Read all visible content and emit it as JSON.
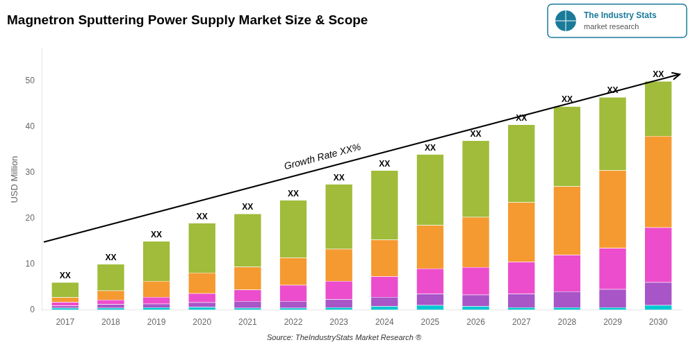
{
  "chart_data": {
    "type": "bar",
    "title": "Magnetron Sputtering Power Supply Market Size & Scope",
    "subtitle": "Source: TheIndustryStats Market Research ®",
    "ylabel": "USD Million",
    "categories": [
      "2017",
      "2018",
      "2019",
      "2020",
      "2021",
      "2022",
      "2023",
      "2024",
      "2025",
      "2026",
      "2027",
      "2028",
      "2029",
      "2030"
    ],
    "series": [
      {
        "color": "#00c8d2",
        "values": [
          0.4,
          0.4,
          0.5,
          0.6,
          0.4,
          0.4,
          0.5,
          0.8,
          1.0,
          0.8,
          0.5,
          0.5,
          0.5,
          1.0
        ]
      },
      {
        "color": "#a855c8",
        "values": [
          0.5,
          0.8,
          0.8,
          1.0,
          1.5,
          1.5,
          1.8,
          2.0,
          2.5,
          2.5,
          3.0,
          3.5,
          4.0,
          5.0
        ]
      },
      {
        "color": "#ec4dcc",
        "values": [
          0.8,
          1.0,
          1.5,
          2.0,
          2.5,
          3.5,
          4.0,
          4.5,
          5.5,
          6.0,
          7.0,
          8.0,
          9.0,
          12.0
        ]
      },
      {
        "color": "#f59a30",
        "values": [
          1.0,
          2.0,
          3.5,
          4.5,
          5.0,
          6.0,
          7.0,
          8.0,
          9.5,
          11.0,
          13.0,
          15.0,
          17.0,
          20.0
        ]
      },
      {
        "color": "#a0bc3a",
        "values": [
          3.3,
          5.8,
          8.7,
          10.9,
          11.6,
          12.6,
          14.2,
          15.2,
          15.5,
          16.7,
          17.0,
          17.5,
          16.0,
          12.0
        ],
        "value_labels": [
          "XX",
          "XX",
          "XX",
          "XX",
          "XX",
          "XX",
          "XX",
          "XX",
          "XX",
          "XX",
          "XX",
          "XX",
          "XX",
          "XX"
        ]
      }
    ],
    "stacked": true,
    "data_labels": true,
    "ylim": [
      0,
      57
    ],
    "yticks": [
      0,
      10,
      20,
      30,
      40,
      50
    ],
    "grid": false,
    "annotations": [
      "Growth Rate XX%",
      "The Industry Stats",
      "market research"
    ]
  }
}
